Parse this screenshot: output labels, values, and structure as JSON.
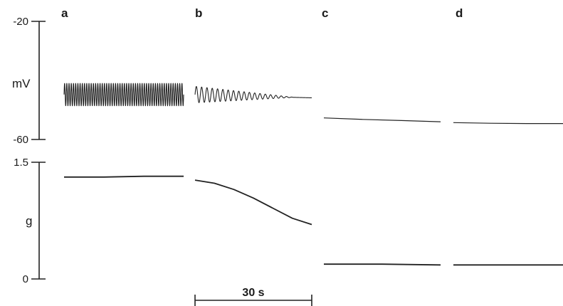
{
  "chart_data": {
    "type": "line",
    "panels": [
      {
        "label": "a",
        "x_range_s": [
          0,
          30
        ]
      },
      {
        "label": "b",
        "x_range_s": [
          0,
          30
        ]
      },
      {
        "label": "c",
        "x_range_s": [
          0,
          30
        ]
      },
      {
        "label": "d",
        "x_range_s": [
          0,
          30
        ]
      }
    ],
    "membrane_potential": {
      "unit_label": "mV",
      "tick_labels": [
        "-20",
        "-60"
      ],
      "ylim": [
        -60,
        -20
      ],
      "traces": [
        {
          "panel": "a",
          "kind": "oscillation",
          "baseline_start": -44.8,
          "baseline_end": -44.8,
          "amplitude_start": 3.8,
          "amplitude_end": 3.8,
          "cycles": 54,
          "decay_fraction": 0
        },
        {
          "panel": "b",
          "kind": "oscillation",
          "baseline_start": -44.8,
          "baseline_end": -45.9,
          "amplitude_start": 2.8,
          "amplitude_end": 0,
          "cycles": 22,
          "decay_fraction": 0.85
        },
        {
          "panel": "c",
          "kind": "line",
          "points": [
            [
              0,
              -52.7
            ],
            [
              10,
              -53.2
            ],
            [
              20,
              -53.6
            ],
            [
              30,
              -54.0
            ]
          ]
        },
        {
          "panel": "d",
          "kind": "line",
          "points": [
            [
              0,
              -54.3
            ],
            [
              10,
              -54.5
            ],
            [
              20,
              -54.6
            ],
            [
              30,
              -54.6
            ]
          ]
        }
      ]
    },
    "tension": {
      "unit_label": "g",
      "tick_labels": [
        "1.5",
        "0"
      ],
      "ylim": [
        0,
        1.5
      ],
      "traces": [
        {
          "panel": "a",
          "points": [
            [
              0,
              1.31
            ],
            [
              10,
              1.31
            ],
            [
              20,
              1.32
            ],
            [
              30,
              1.32
            ]
          ]
        },
        {
          "panel": "b",
          "points": [
            [
              0,
              1.27
            ],
            [
              5,
              1.23
            ],
            [
              10,
              1.15
            ],
            [
              15,
              1.04
            ],
            [
              20,
              0.91
            ],
            [
              25,
              0.78
            ],
            [
              30,
              0.7
            ]
          ]
        },
        {
          "panel": "c",
          "points": [
            [
              0,
              0.19
            ],
            [
              15,
              0.19
            ],
            [
              30,
              0.18
            ]
          ]
        },
        {
          "panel": "d",
          "points": [
            [
              0,
              0.18
            ],
            [
              15,
              0.18
            ],
            [
              30,
              0.18
            ]
          ]
        }
      ]
    },
    "scale_bar": {
      "label": "30 s",
      "seconds": 30
    }
  }
}
